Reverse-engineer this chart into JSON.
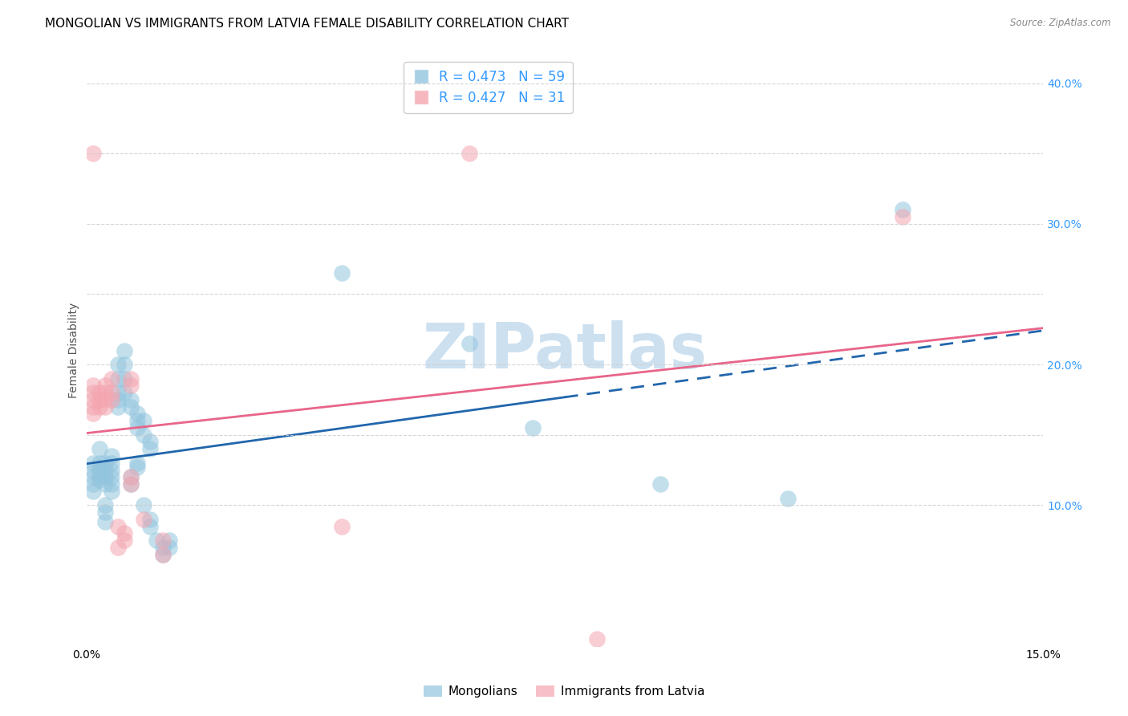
{
  "title": "MONGOLIAN VS IMMIGRANTS FROM LATVIA FEMALE DISABILITY CORRELATION CHART",
  "source": "Source: ZipAtlas.com",
  "ylabel": "Female Disability",
  "xlim": [
    0.0,
    0.15
  ],
  "ylim": [
    0.0,
    0.42
  ],
  "xticks": [
    0.0,
    0.03,
    0.06,
    0.09,
    0.12,
    0.15
  ],
  "yticks_right": [
    0.1,
    0.15,
    0.2,
    0.25,
    0.3,
    0.35,
    0.4
  ],
  "ytick_right_labels": [
    "10.0%",
    "",
    "20.0%",
    "",
    "30.0%",
    "",
    "40.0%"
  ],
  "r_mongolian": 0.473,
  "n_mongolian": 59,
  "r_latvia": 0.427,
  "n_latvia": 31,
  "mongolian_color": "#92c5de",
  "latvia_color": "#f4a5b0",
  "mongolian_line_color": "#2166ac",
  "latvia_line_color": "#e8658a",
  "mongolian_scatter": [
    [
      0.001,
      0.125
    ],
    [
      0.001,
      0.12
    ],
    [
      0.001,
      0.13
    ],
    [
      0.001,
      0.115
    ],
    [
      0.001,
      0.11
    ],
    [
      0.002,
      0.125
    ],
    [
      0.002,
      0.13
    ],
    [
      0.002,
      0.118
    ],
    [
      0.002,
      0.14
    ],
    [
      0.002,
      0.12
    ],
    [
      0.003,
      0.13
    ],
    [
      0.003,
      0.125
    ],
    [
      0.003,
      0.12
    ],
    [
      0.003,
      0.115
    ],
    [
      0.003,
      0.1
    ],
    [
      0.003,
      0.095
    ],
    [
      0.003,
      0.088
    ],
    [
      0.004,
      0.135
    ],
    [
      0.004,
      0.13
    ],
    [
      0.004,
      0.125
    ],
    [
      0.004,
      0.12
    ],
    [
      0.004,
      0.115
    ],
    [
      0.004,
      0.11
    ],
    [
      0.005,
      0.2
    ],
    [
      0.005,
      0.19
    ],
    [
      0.005,
      0.18
    ],
    [
      0.005,
      0.175
    ],
    [
      0.005,
      0.17
    ],
    [
      0.006,
      0.21
    ],
    [
      0.006,
      0.2
    ],
    [
      0.006,
      0.19
    ],
    [
      0.006,
      0.18
    ],
    [
      0.007,
      0.175
    ],
    [
      0.007,
      0.17
    ],
    [
      0.007,
      0.12
    ],
    [
      0.007,
      0.115
    ],
    [
      0.008,
      0.165
    ],
    [
      0.008,
      0.16
    ],
    [
      0.008,
      0.155
    ],
    [
      0.008,
      0.13
    ],
    [
      0.008,
      0.127
    ],
    [
      0.009,
      0.16
    ],
    [
      0.009,
      0.15
    ],
    [
      0.009,
      0.1
    ],
    [
      0.01,
      0.145
    ],
    [
      0.01,
      0.14
    ],
    [
      0.01,
      0.09
    ],
    [
      0.01,
      0.085
    ],
    [
      0.011,
      0.075
    ],
    [
      0.012,
      0.07
    ],
    [
      0.012,
      0.065
    ],
    [
      0.013,
      0.07
    ],
    [
      0.013,
      0.075
    ],
    [
      0.04,
      0.265
    ],
    [
      0.06,
      0.215
    ],
    [
      0.07,
      0.155
    ],
    [
      0.09,
      0.115
    ],
    [
      0.11,
      0.105
    ],
    [
      0.128,
      0.31
    ]
  ],
  "latvia_scatter": [
    [
      0.001,
      0.35
    ],
    [
      0.001,
      0.185
    ],
    [
      0.001,
      0.18
    ],
    [
      0.001,
      0.175
    ],
    [
      0.001,
      0.17
    ],
    [
      0.001,
      0.165
    ],
    [
      0.002,
      0.18
    ],
    [
      0.002,
      0.175
    ],
    [
      0.002,
      0.17
    ],
    [
      0.003,
      0.185
    ],
    [
      0.003,
      0.18
    ],
    [
      0.003,
      0.175
    ],
    [
      0.003,
      0.17
    ],
    [
      0.004,
      0.19
    ],
    [
      0.004,
      0.18
    ],
    [
      0.004,
      0.175
    ],
    [
      0.005,
      0.085
    ],
    [
      0.005,
      0.07
    ],
    [
      0.006,
      0.08
    ],
    [
      0.006,
      0.075
    ],
    [
      0.007,
      0.19
    ],
    [
      0.007,
      0.185
    ],
    [
      0.007,
      0.12
    ],
    [
      0.007,
      0.115
    ],
    [
      0.009,
      0.09
    ],
    [
      0.012,
      0.075
    ],
    [
      0.012,
      0.065
    ],
    [
      0.04,
      0.085
    ],
    [
      0.06,
      0.35
    ],
    [
      0.08,
      0.005
    ],
    [
      0.128,
      0.305
    ]
  ],
  "background_color": "#ffffff",
  "grid_color": "#cccccc",
  "title_fontsize": 11,
  "axis_label_fontsize": 10,
  "tick_fontsize": 10,
  "watermark_text": "ZIPatlas",
  "watermark_color": "#cce0f0",
  "legend_mongolian": "Mongolians",
  "legend_latvia": "Immigrants from Latvia"
}
